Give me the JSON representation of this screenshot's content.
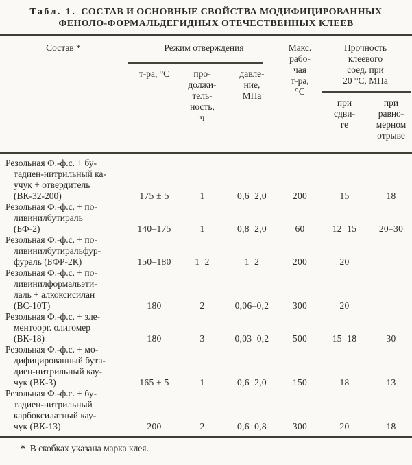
{
  "title": {
    "prefix": "Табл. 1.",
    "line1": "СОСТАВ И ОСНОВНЫЕ СВОЙСТВА МОДИФИЦИРОВАННЫХ",
    "line2": "ФЕНОЛО-ФОРМАЛЬДЕГИДНЫХ ОТЕЧЕСТВЕННЫХ КЛЕЕВ"
  },
  "table": {
    "headers": {
      "composition": "Состав *",
      "cure_group": "Режим отверждения",
      "temp": "т-ра, °С",
      "duration": "про-\nдолжи-\nтель-\nность,\nч",
      "pressure": "давле-\nние,\nМПа",
      "max_temp": "Макс.\nрабо-\nчая\nт-ра,\n°С",
      "strength_group": "Прочность\nклеевого\nсоед. при\n20 °С, МПа",
      "shear": "при\nсдви-\nге",
      "peel": "при\nравно-\nмерном\nотрыве"
    },
    "rows": [
      {
        "composition": "Резольная Ф.-ф.с. + бу-\nтадиен-нитрильный ка-\nучук + отвердитель\n(ВК-32-200)",
        "temp": "175 ± 5",
        "duration": "1",
        "pressure": "0,6  2,0",
        "max_temp": "200",
        "shear": "15",
        "peel": "18"
      },
      {
        "composition": "Резольная Ф.-ф.с. + по-\nливинилбутираль\n(БФ-2)",
        "temp": "140–175",
        "duration": "1",
        "pressure": "0,8  2,0",
        "max_temp": "60",
        "shear": "12  15",
        "peel": "20–30"
      },
      {
        "composition": "Резольная Ф.-ф.с. + по-\nливинилбутиральфур-\nфураль (БФР-2К)",
        "temp": "150–180",
        "duration": "1  2",
        "pressure": "1  2",
        "max_temp": "200",
        "shear": "20",
        "peel": ""
      },
      {
        "composition": "Резольная Ф.-ф.с. + по-\nливинилформальэти-\nлаль + алкоксисилан\n(ВС-10Т)",
        "temp": "180",
        "duration": "2",
        "pressure": "0,06–0,2",
        "max_temp": "300",
        "shear": "20",
        "peel": ""
      },
      {
        "composition": "Резольная Ф.-ф.с. + эле-\nментоорг. олигомер\n(ВК-18)",
        "temp": "180",
        "duration": "3",
        "pressure": "0,03  0,2",
        "max_temp": "500",
        "shear": "15  18",
        "peel": "30"
      },
      {
        "composition": "Резольная Ф.-ф.с. + мо-\nдифицированный бута-\nдиен-нитрильный кау-\nчук (ВК-3)",
        "temp": "165 ± 5",
        "duration": "1",
        "pressure": "0,6  2,0",
        "max_temp": "150",
        "shear": "18",
        "peel": "13"
      },
      {
        "composition": "Резольная Ф.-ф.с. + бу-\nтадиен-нитрильный\nкарбоксилатный кау-\nчук (ВК-13)",
        "temp": "200",
        "duration": "2",
        "pressure": "0,6  0,8",
        "max_temp": "300",
        "shear": "20",
        "peel": "18"
      }
    ]
  },
  "footnote": {
    "marker": "*",
    "text": "В скобках указана марка клея."
  }
}
